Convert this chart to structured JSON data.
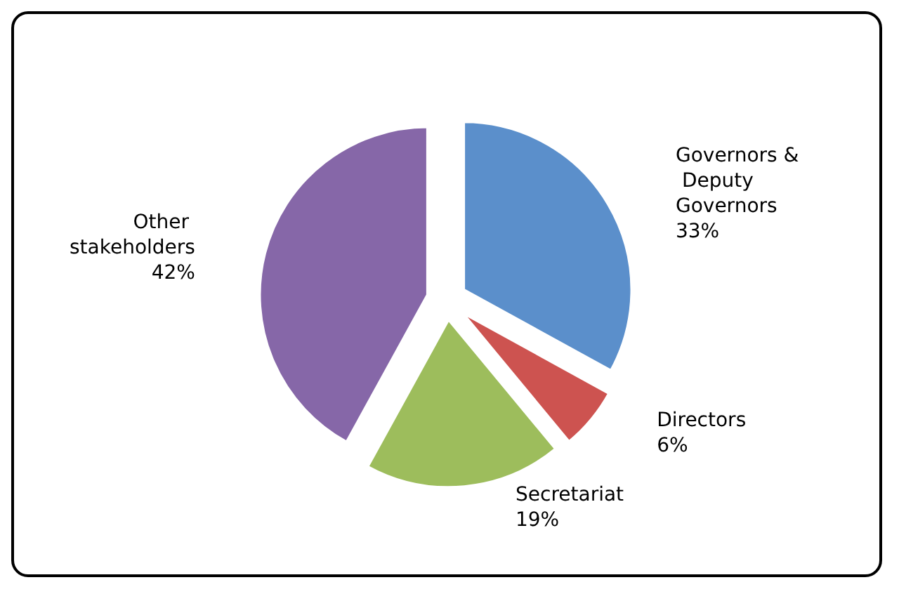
{
  "chart_data": {
    "type": "pie",
    "categories": [
      "Governors & Deputy Governors",
      "Directors",
      "Secretariat",
      "Other stakeholders"
    ],
    "values": [
      33,
      6,
      19,
      42
    ],
    "colors": [
      "#5b8fcb",
      "#cd5350",
      "#9dbd5c",
      "#8667a8"
    ],
    "value_labels": [
      "33%",
      "6%",
      "19%",
      "42%"
    ],
    "legend": false
  }
}
